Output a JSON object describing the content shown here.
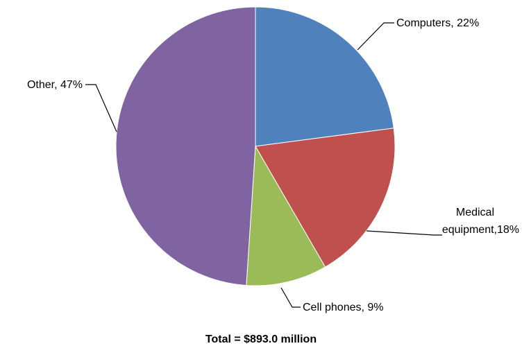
{
  "chart_data": {
    "type": "pie",
    "slices": [
      {
        "label": "Computers, 22%",
        "name": "Computers",
        "value": 22,
        "color": "#4F81BD"
      },
      {
        "label": "Medical equipment,18%",
        "label_lines": [
          "Medical",
          "equipment,18%"
        ],
        "name": "Medical equipment",
        "value": 18,
        "color": "#C0504D"
      },
      {
        "label": "Cell phones, 9%",
        "name": "Cell phones",
        "value": 9,
        "color": "#9BBB59"
      },
      {
        "label": "Other, 47%",
        "name": "Other",
        "value": 47,
        "color": "#8064A2"
      }
    ],
    "start_angle": "12 o'clock, clockwise",
    "legend": "none",
    "footer": "Total = $893.0 million"
  }
}
